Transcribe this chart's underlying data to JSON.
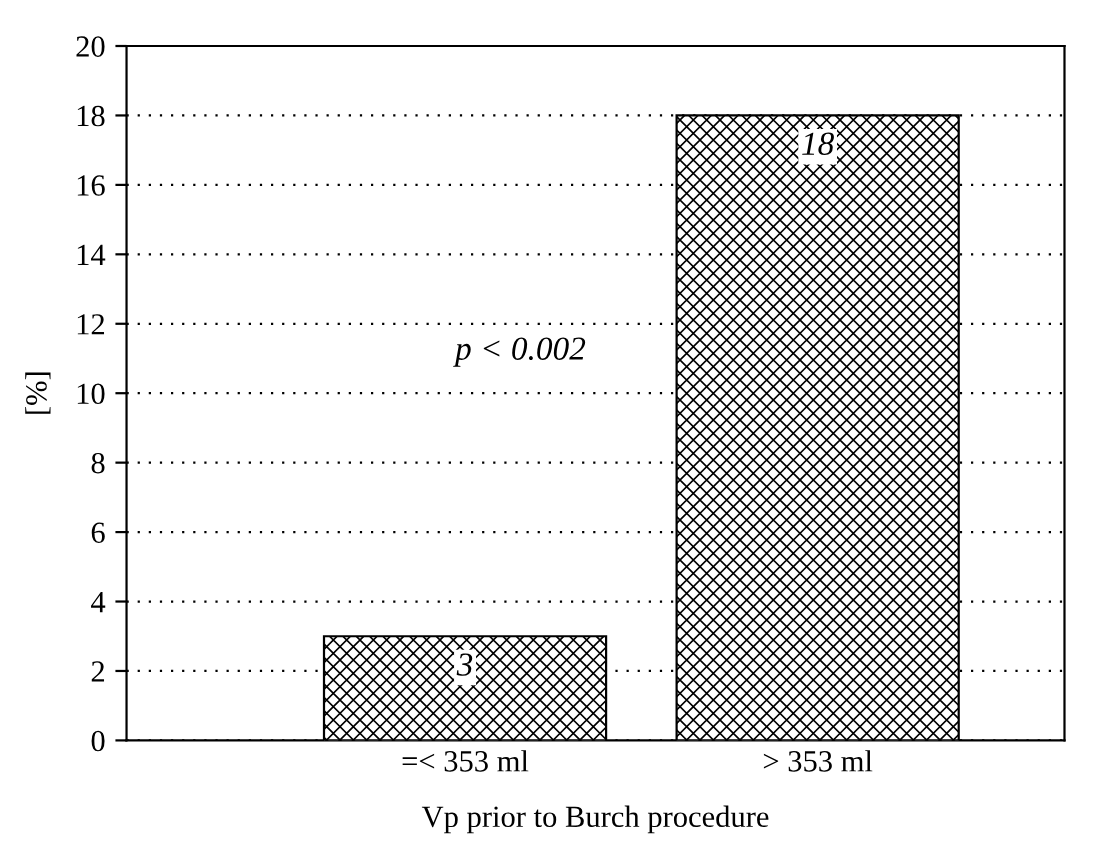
{
  "chart_data": {
    "type": "bar",
    "xlabel": "Vp prior to Burch procedure",
    "ylabel": "[%]",
    "categories": [
      "=< 353 ml",
      "> 353 ml"
    ],
    "values": [
      3,
      18
    ],
    "color": "#000000",
    "ylim": [
      0,
      20
    ],
    "yticks": [
      0,
      2,
      4,
      6,
      8,
      10,
      12,
      14,
      16,
      18,
      20
    ],
    "grid": "y",
    "data_labels": true,
    "annotations": [
      "p < 0.002"
    ]
  }
}
